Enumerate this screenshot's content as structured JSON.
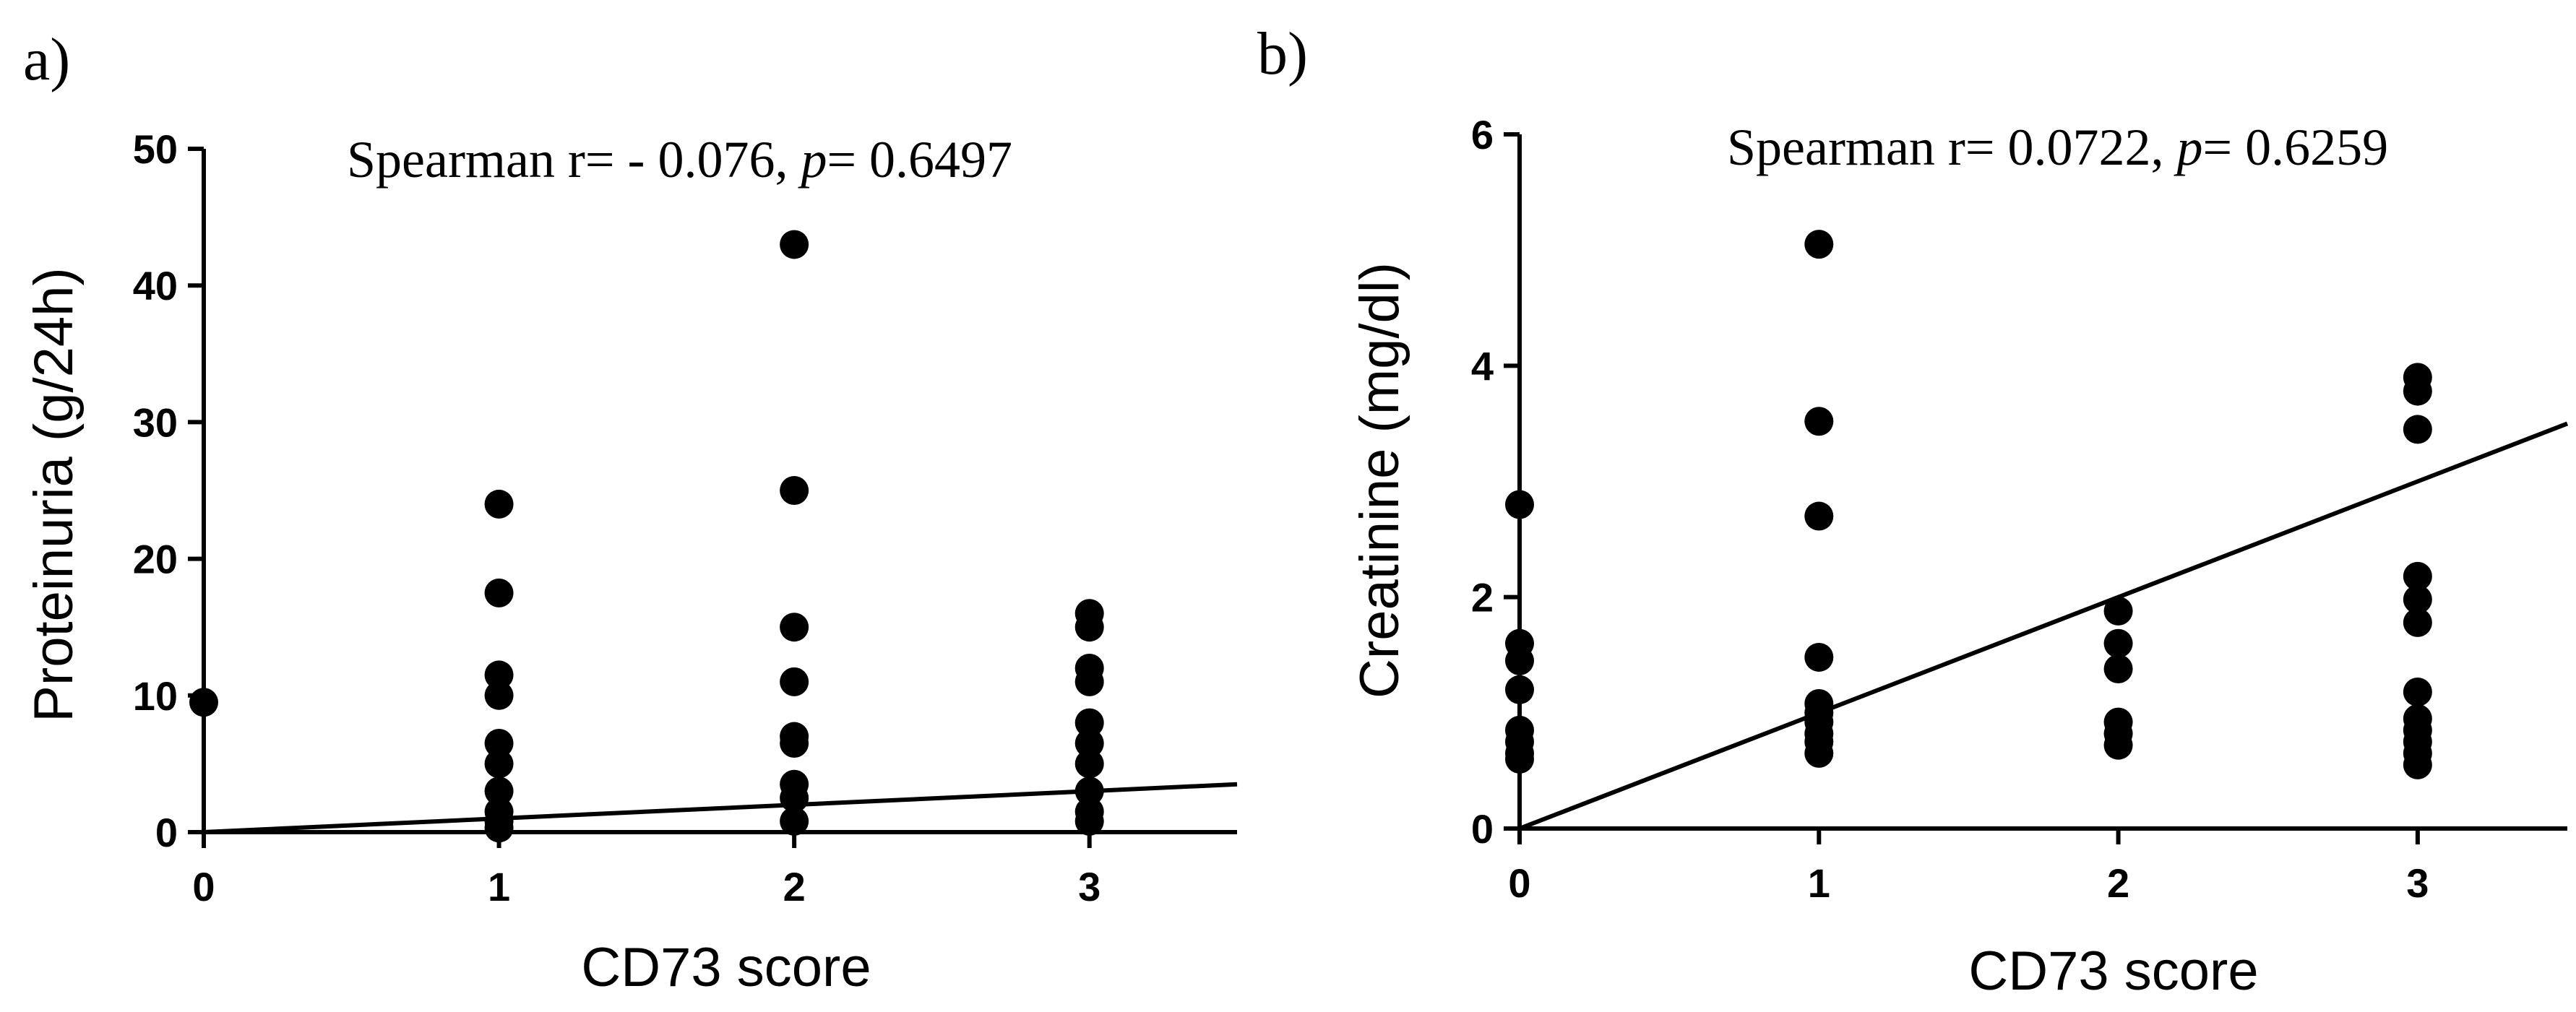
{
  "chart_data": [
    {
      "type": "scatter",
      "panel_label": "a)",
      "title": "",
      "xlabel": "CD73 score",
      "ylabel": "Proteinuria (g/24h)",
      "xlim": [
        0,
        3.5
      ],
      "ylim": [
        0,
        50
      ],
      "xticks": [
        0,
        1,
        2,
        3
      ],
      "yticks": [
        0,
        10,
        20,
        30,
        40,
        50
      ],
      "annotation": {
        "prefix": "Spearman r= - 0.076, ",
        "p_symbol": "p",
        "suffix": "= 0.6497"
      },
      "points": [
        {
          "x": 0,
          "y": 9.5
        },
        {
          "x": 1,
          "y": 24.0
        },
        {
          "x": 1,
          "y": 17.5
        },
        {
          "x": 1,
          "y": 11.5
        },
        {
          "x": 1,
          "y": 10.0
        },
        {
          "x": 1,
          "y": 6.5
        },
        {
          "x": 1,
          "y": 5.0
        },
        {
          "x": 1,
          "y": 3.0
        },
        {
          "x": 1,
          "y": 1.5
        },
        {
          "x": 1,
          "y": 0.8
        },
        {
          "x": 1,
          "y": 0.3
        },
        {
          "x": 2,
          "y": 43.0
        },
        {
          "x": 2,
          "y": 25.0
        },
        {
          "x": 2,
          "y": 15.0
        },
        {
          "x": 2,
          "y": 11.0
        },
        {
          "x": 2,
          "y": 7.0
        },
        {
          "x": 2,
          "y": 6.5
        },
        {
          "x": 2,
          "y": 3.5
        },
        {
          "x": 2,
          "y": 2.5
        },
        {
          "x": 2,
          "y": 0.8
        },
        {
          "x": 3,
          "y": 16.0
        },
        {
          "x": 3,
          "y": 15.0
        },
        {
          "x": 3,
          "y": 12.0
        },
        {
          "x": 3,
          "y": 11.0
        },
        {
          "x": 3,
          "y": 8.0
        },
        {
          "x": 3,
          "y": 6.5
        },
        {
          "x": 3,
          "y": 5.0
        },
        {
          "x": 3,
          "y": 3.0
        },
        {
          "x": 3,
          "y": 1.5
        },
        {
          "x": 3,
          "y": 0.8
        }
      ],
      "regression": {
        "x": [
          0,
          3.5
        ],
        "y": [
          0,
          3.5
        ]
      }
    },
    {
      "type": "scatter",
      "panel_label": "b)",
      "title": "",
      "xlabel": "CD73 score",
      "ylabel": "Creatinine (mg/dl)",
      "xlim": [
        0,
        3.5
      ],
      "ylim": [
        0,
        6
      ],
      "xticks": [
        0,
        1,
        2,
        3
      ],
      "yticks": [
        0,
        2,
        4,
        6
      ],
      "annotation": {
        "prefix": "Spearman r= 0.0722, ",
        "p_symbol": "p",
        "suffix": "= 0.6259"
      },
      "points": [
        {
          "x": 0,
          "y": 2.8
        },
        {
          "x": 0,
          "y": 1.6
        },
        {
          "x": 0,
          "y": 1.45
        },
        {
          "x": 0,
          "y": 1.2
        },
        {
          "x": 0,
          "y": 0.85
        },
        {
          "x": 0,
          "y": 0.75
        },
        {
          "x": 0,
          "y": 0.65
        },
        {
          "x": 0,
          "y": 0.6
        },
        {
          "x": 1,
          "y": 5.05
        },
        {
          "x": 1,
          "y": 3.52
        },
        {
          "x": 1,
          "y": 2.7
        },
        {
          "x": 1,
          "y": 1.48
        },
        {
          "x": 1,
          "y": 1.08
        },
        {
          "x": 1,
          "y": 1.0
        },
        {
          "x": 1,
          "y": 0.92
        },
        {
          "x": 1,
          "y": 0.82
        },
        {
          "x": 1,
          "y": 0.75
        },
        {
          "x": 1,
          "y": 0.65
        },
        {
          "x": 2,
          "y": 1.88
        },
        {
          "x": 2,
          "y": 1.6
        },
        {
          "x": 2,
          "y": 1.38
        },
        {
          "x": 2,
          "y": 0.92
        },
        {
          "x": 2,
          "y": 0.82
        },
        {
          "x": 2,
          "y": 0.72
        },
        {
          "x": 3,
          "y": 3.9
        },
        {
          "x": 3,
          "y": 3.78
        },
        {
          "x": 3,
          "y": 3.45
        },
        {
          "x": 3,
          "y": 2.18
        },
        {
          "x": 3,
          "y": 1.98
        },
        {
          "x": 3,
          "y": 1.78
        },
        {
          "x": 3,
          "y": 1.18
        },
        {
          "x": 3,
          "y": 0.95
        },
        {
          "x": 3,
          "y": 0.85
        },
        {
          "x": 3,
          "y": 0.75
        },
        {
          "x": 3,
          "y": 0.65
        },
        {
          "x": 3,
          "y": 0.55
        }
      ],
      "regression": {
        "x": [
          0,
          3.5
        ],
        "y": [
          0,
          3.5
        ]
      }
    }
  ]
}
